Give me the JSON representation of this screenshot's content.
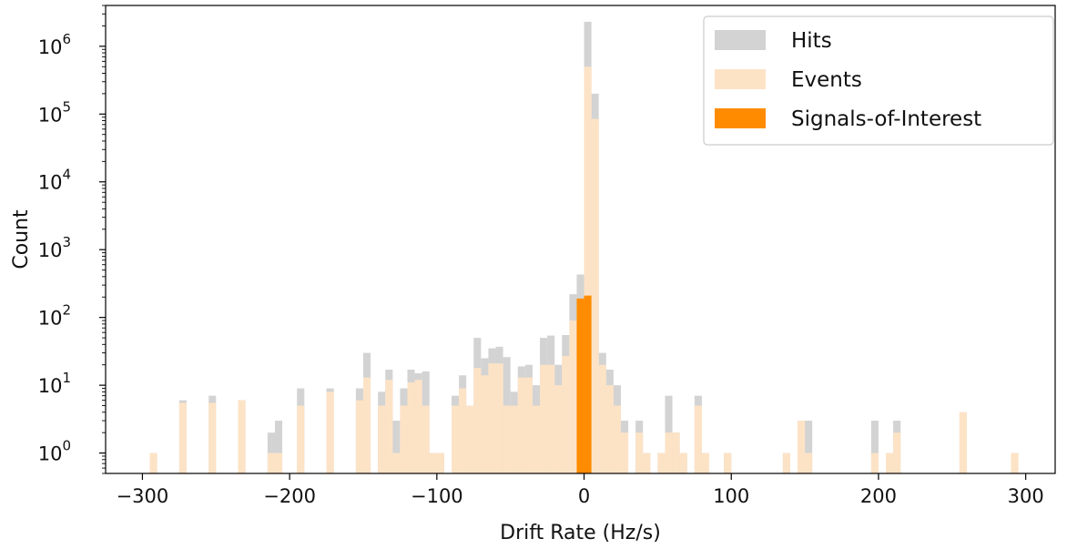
{
  "chart_data": {
    "type": "bar",
    "scale": {
      "y": "log"
    },
    "xlabel": "Drift Rate (Hz/s)",
    "ylabel": "Count",
    "xlim": [
      -325,
      320
    ],
    "ylim": [
      0.5,
      4000000
    ],
    "bin_width": 5,
    "x_ticks": [
      {
        "value": -300,
        "label": "−300"
      },
      {
        "value": -200,
        "label": "−200"
      },
      {
        "value": -100,
        "label": "−100"
      },
      {
        "value": 0,
        "label": "0"
      },
      {
        "value": 100,
        "label": "100"
      },
      {
        "value": 200,
        "label": "200"
      },
      {
        "value": 300,
        "label": "300"
      }
    ],
    "y_ticks": [
      {
        "value": 1,
        "base": "10",
        "exp": "0"
      },
      {
        "value": 10,
        "base": "10",
        "exp": "1"
      },
      {
        "value": 100,
        "base": "10",
        "exp": "2"
      },
      {
        "value": 1000,
        "base": "10",
        "exp": "3"
      },
      {
        "value": 10000,
        "base": "10",
        "exp": "4"
      },
      {
        "value": 100000,
        "base": "10",
        "exp": "5"
      },
      {
        "value": 1000000,
        "base": "10",
        "exp": "6"
      }
    ],
    "legend": {
      "placement": "top-right",
      "entries": [
        {
          "label": "Hits",
          "color": "#d3d3d3"
        },
        {
          "label": "Events",
          "color": "#fde3c6"
        },
        {
          "label": "Signals-of-Interest",
          "color": "#ff8c00"
        }
      ]
    },
    "series": [
      {
        "name": "Hits",
        "color": "#d3d3d3",
        "bins": [
          [
            -295,
            1
          ],
          [
            -275,
            6
          ],
          [
            -255,
            7
          ],
          [
            -235,
            6
          ],
          [
            -215,
            2
          ],
          [
            -210,
            3
          ],
          [
            -195,
            9
          ],
          [
            -175,
            9
          ],
          [
            -155,
            9
          ],
          [
            -150,
            30
          ],
          [
            -140,
            8
          ],
          [
            -135,
            17
          ],
          [
            -130,
            3
          ],
          [
            -125,
            9
          ],
          [
            -120,
            17
          ],
          [
            -115,
            15
          ],
          [
            -110,
            16
          ],
          [
            -105,
            1
          ],
          [
            -100,
            1
          ],
          [
            -90,
            7
          ],
          [
            -85,
            14
          ],
          [
            -80,
            5
          ],
          [
            -75,
            50
          ],
          [
            -70,
            25
          ],
          [
            -65,
            35
          ],
          [
            -60,
            37
          ],
          [
            -55,
            26
          ],
          [
            -50,
            8
          ],
          [
            -45,
            19
          ],
          [
            -40,
            20
          ],
          [
            -35,
            10
          ],
          [
            -30,
            50
          ],
          [
            -25,
            54
          ],
          [
            -20,
            20
          ],
          [
            -15,
            55
          ],
          [
            -10,
            220
          ],
          [
            -5,
            430
          ],
          [
            0,
            2300000
          ],
          [
            5,
            200000
          ],
          [
            10,
            30
          ],
          [
            15,
            17
          ],
          [
            20,
            10
          ],
          [
            25,
            3
          ],
          [
            35,
            3
          ],
          [
            40,
            1
          ],
          [
            50,
            1
          ],
          [
            55,
            7
          ],
          [
            60,
            2
          ],
          [
            65,
            1
          ],
          [
            75,
            7
          ],
          [
            80,
            1
          ],
          [
            95,
            1
          ],
          [
            135,
            1
          ],
          [
            145,
            3
          ],
          [
            150,
            3
          ],
          [
            195,
            3
          ],
          [
            205,
            1
          ],
          [
            210,
            3
          ],
          [
            255,
            4
          ],
          [
            290,
            1
          ]
        ]
      },
      {
        "name": "Events",
        "color": "#fde3c6",
        "bins": [
          [
            -295,
            1
          ],
          [
            -275,
            5.5
          ],
          [
            -255,
            5.5
          ],
          [
            -235,
            6
          ],
          [
            -215,
            1
          ],
          [
            -210,
            1
          ],
          [
            -195,
            5
          ],
          [
            -175,
            8
          ],
          [
            -155,
            6
          ],
          [
            -150,
            13
          ],
          [
            -140,
            5
          ],
          [
            -135,
            12
          ],
          [
            -130,
            1
          ],
          [
            -125,
            5
          ],
          [
            -120,
            11
          ],
          [
            -115,
            12
          ],
          [
            -110,
            5
          ],
          [
            -105,
            1
          ],
          [
            -100,
            1
          ],
          [
            -90,
            5
          ],
          [
            -85,
            9
          ],
          [
            -80,
            5
          ],
          [
            -75,
            18
          ],
          [
            -70,
            14
          ],
          [
            -65,
            21
          ],
          [
            -60,
            21
          ],
          [
            -55,
            5
          ],
          [
            -50,
            5
          ],
          [
            -45,
            13
          ],
          [
            -40,
            13
          ],
          [
            -35,
            5
          ],
          [
            -30,
            20
          ],
          [
            -25,
            20
          ],
          [
            -20,
            10
          ],
          [
            -15,
            27
          ],
          [
            -10,
            90
          ],
          [
            -5,
            160
          ],
          [
            0,
            500000
          ],
          [
            5,
            85000
          ],
          [
            10,
            20
          ],
          [
            15,
            10
          ],
          [
            20,
            5
          ],
          [
            25,
            2
          ],
          [
            35,
            2
          ],
          [
            40,
            1
          ],
          [
            50,
            1
          ],
          [
            55,
            2
          ],
          [
            60,
            2
          ],
          [
            65,
            1
          ],
          [
            75,
            5
          ],
          [
            80,
            1
          ],
          [
            95,
            1
          ],
          [
            135,
            1
          ],
          [
            145,
            3
          ],
          [
            150,
            1
          ],
          [
            195,
            1
          ],
          [
            205,
            1
          ],
          [
            210,
            2
          ],
          [
            255,
            4
          ],
          [
            290,
            1
          ]
        ]
      },
      {
        "name": "Signals-of-Interest",
        "color": "#ff8c00",
        "bins": [
          [
            -5,
            190
          ],
          [
            0,
            210
          ]
        ]
      }
    ]
  }
}
